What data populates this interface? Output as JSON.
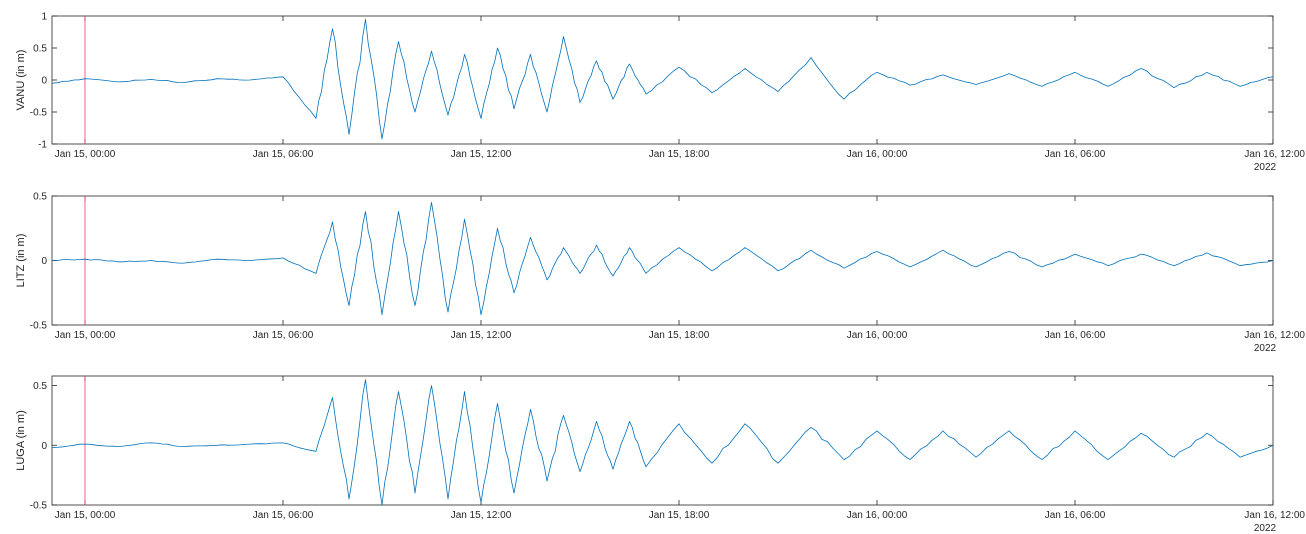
{
  "chart_data": [
    {
      "type": "line",
      "ylabel": "VANU (in m)",
      "ylim": [
        -1,
        1
      ],
      "yticks": [
        -1,
        -0.5,
        0,
        0.5,
        1
      ],
      "ytick_labels": [
        "-1",
        "-0.5",
        "0",
        "0.5",
        "1"
      ],
      "xlim_hours": [
        -1,
        36
      ],
      "xticks_hours": [
        0,
        6,
        12,
        18,
        24,
        30,
        36
      ],
      "xtick_labels": [
        "Jan 15, 00:00",
        "Jan 15, 06:00",
        "Jan 15, 12:00",
        "Jan 15, 18:00",
        "Jan 16, 00:00",
        "Jan 16, 06:00",
        "Jan 16, 12:00"
      ],
      "x_secondary_label": "2022",
      "marker_time_hours": 0,
      "series_color": "#0072BD",
      "marker_color": "#FF3377",
      "series": [
        {
          "x": [
            -1,
            0,
            1,
            2,
            3,
            4,
            5,
            6,
            7,
            7.5,
            8,
            8.5,
            9,
            9.5,
            10,
            10.5,
            11,
            11.5,
            12,
            12.5,
            13,
            13.5,
            14,
            14.5,
            15,
            15.5,
            16,
            16.5,
            17,
            18,
            19,
            20,
            21,
            22,
            23,
            24,
            25,
            26,
            27,
            28,
            29,
            30,
            31,
            32,
            33,
            34,
            35,
            36
          ],
          "y": [
            -0.05,
            0.02,
            -0.03,
            0.01,
            -0.04,
            0.02,
            0.0,
            0.05,
            -0.6,
            0.8,
            -0.85,
            0.95,
            -0.92,
            0.6,
            -0.5,
            0.45,
            -0.55,
            0.4,
            -0.6,
            0.5,
            -0.45,
            0.4,
            -0.5,
            0.68,
            -0.35,
            0.3,
            -0.3,
            0.25,
            -0.22,
            0.2,
            -0.2,
            0.18,
            -0.18,
            0.35,
            -0.3,
            0.12,
            -0.08,
            0.08,
            -0.07,
            0.1,
            -0.1,
            0.12,
            -0.1,
            0.18,
            -0.12,
            0.12,
            -0.1,
            0.05
          ]
        }
      ]
    },
    {
      "type": "line",
      "ylabel": "LITZ (in m)",
      "ylim": [
        -0.5,
        0.5
      ],
      "yticks": [
        -0.5,
        0,
        0.5
      ],
      "ytick_labels": [
        "-0.5",
        "0",
        "0.5"
      ],
      "xlim_hours": [
        -1,
        36
      ],
      "xticks_hours": [
        0,
        6,
        12,
        18,
        24,
        30,
        36
      ],
      "xtick_labels": [
        "Jan 15, 00:00",
        "Jan 15, 06:00",
        "Jan 15, 12:00",
        "Jan 15, 18:00",
        "Jan 16, 00:00",
        "Jan 16, 06:00",
        "Jan 16, 12:00"
      ],
      "x_secondary_label": "2022",
      "marker_time_hours": 0,
      "series_color": "#0072BD",
      "marker_color": "#FF3377",
      "series": [
        {
          "x": [
            -1,
            0,
            1,
            2,
            3,
            4,
            5,
            6,
            7,
            7.5,
            8,
            8.5,
            9,
            9.5,
            10,
            10.5,
            11,
            11.5,
            12,
            12.5,
            13,
            13.5,
            14,
            14.5,
            15,
            15.5,
            16,
            16.5,
            17,
            18,
            19,
            20,
            21,
            22,
            23,
            24,
            25,
            26,
            27,
            28,
            29,
            30,
            31,
            32,
            33,
            34,
            35,
            36
          ],
          "y": [
            0.0,
            0.01,
            -0.01,
            0.0,
            -0.02,
            0.01,
            0.0,
            0.02,
            -0.1,
            0.3,
            -0.35,
            0.38,
            -0.42,
            0.38,
            -0.35,
            0.45,
            -0.4,
            0.32,
            -0.42,
            0.25,
            -0.25,
            0.18,
            -0.15,
            0.1,
            -0.1,
            0.12,
            -0.12,
            0.1,
            -0.1,
            0.1,
            -0.08,
            0.1,
            -0.08,
            0.08,
            -0.06,
            0.07,
            -0.05,
            0.08,
            -0.05,
            0.07,
            -0.05,
            0.05,
            -0.04,
            0.05,
            -0.04,
            0.06,
            -0.04,
            0.0
          ]
        }
      ]
    },
    {
      "type": "line",
      "ylabel": "LUGA (in m)",
      "ylim": [
        -0.5,
        0.58
      ],
      "yticks": [
        -0.5,
        0,
        0.5
      ],
      "ytick_labels": [
        "-0.5",
        "0",
        "0.5"
      ],
      "xlim_hours": [
        -1,
        36
      ],
      "xticks_hours": [
        0,
        6,
        12,
        18,
        24,
        30,
        36
      ],
      "xtick_labels": [
        "Jan 15, 00:00",
        "Jan 15, 06:00",
        "Jan 15, 12:00",
        "Jan 15, 18:00",
        "Jan 16, 00:00",
        "Jan 16, 06:00",
        "Jan 16, 12:00"
      ],
      "x_secondary_label": "2022",
      "marker_time_hours": 0,
      "series_color": "#0072BD",
      "marker_color": "#FF3377",
      "series": [
        {
          "x": [
            -1,
            0,
            1,
            2,
            3,
            4,
            5,
            6,
            7,
            7.5,
            8,
            8.5,
            9,
            9.5,
            10,
            10.5,
            11,
            11.5,
            12,
            12.5,
            13,
            13.5,
            14,
            14.5,
            15,
            15.5,
            16,
            16.5,
            17,
            18,
            19,
            20,
            21,
            22,
            23,
            24,
            25,
            26,
            27,
            28,
            29,
            30,
            31,
            32,
            33,
            34,
            35,
            36
          ],
          "y": [
            -0.02,
            0.01,
            -0.01,
            0.02,
            -0.01,
            0.0,
            0.01,
            0.02,
            -0.05,
            0.4,
            -0.45,
            0.55,
            -0.5,
            0.45,
            -0.4,
            0.5,
            -0.45,
            0.45,
            -0.48,
            0.35,
            -0.4,
            0.3,
            -0.3,
            0.25,
            -0.22,
            0.2,
            -0.2,
            0.2,
            -0.18,
            0.18,
            -0.15,
            0.18,
            -0.15,
            0.15,
            -0.12,
            0.12,
            -0.12,
            0.12,
            -0.1,
            0.12,
            -0.12,
            0.12,
            -0.12,
            0.1,
            -0.1,
            0.1,
            -0.1,
            0.0
          ]
        }
      ]
    }
  ]
}
